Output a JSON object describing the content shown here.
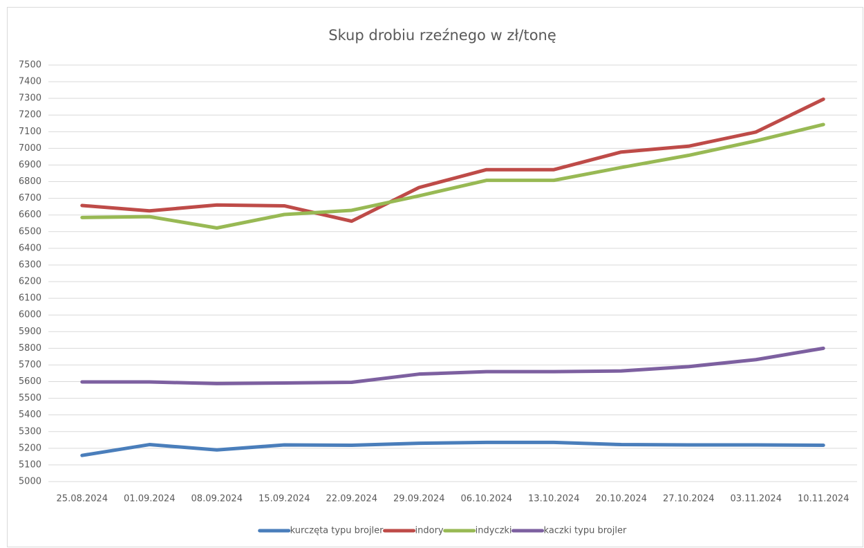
{
  "chart_data": {
    "type": "line",
    "title": "Skup drobiu rzeźnego w zł/tonę",
    "categories": [
      "25.08.2024",
      "01.09.2024",
      "08.09.2024",
      "15.09.2024",
      "22.09.2024",
      "29.09.2024",
      "06.10.2024",
      "13.10.2024",
      "20.10.2024",
      "27.10.2024",
      "03.11.2024",
      "10.11.2024"
    ],
    "series": [
      {
        "name": "kurczęta typu brojler",
        "color": "#4a7ebb",
        "values": [
          5157,
          5222,
          5190,
          5220,
          5218,
          5230,
          5235,
          5235,
          5222,
          5220,
          5220,
          5218
        ]
      },
      {
        "name": "indory",
        "color": "#be4b48",
        "values": [
          6657,
          6625,
          6660,
          6655,
          6563,
          6765,
          6872,
          6872,
          6978,
          7013,
          7098,
          7295
        ]
      },
      {
        "name": "indyczki",
        "color": "#98b954",
        "values": [
          6585,
          6590,
          6522,
          6603,
          6628,
          6715,
          6808,
          6808,
          6885,
          6958,
          7045,
          7143
        ]
      },
      {
        "name": "kaczki typu brojler",
        "color": "#7d60a0",
        "values": [
          5598,
          5598,
          5588,
          5592,
          5596,
          5645,
          5660,
          5660,
          5664,
          5690,
          5732,
          5800
        ]
      }
    ],
    "ylim": [
      5000,
      7500
    ],
    "yticks": [
      5000,
      5100,
      5200,
      5300,
      5400,
      5500,
      5600,
      5700,
      5800,
      5900,
      6000,
      6100,
      6200,
      6300,
      6400,
      6500,
      6600,
      6700,
      6800,
      6900,
      7000,
      7100,
      7200,
      7300,
      7400,
      7500
    ],
    "grid": true,
    "legend": "bottom"
  }
}
